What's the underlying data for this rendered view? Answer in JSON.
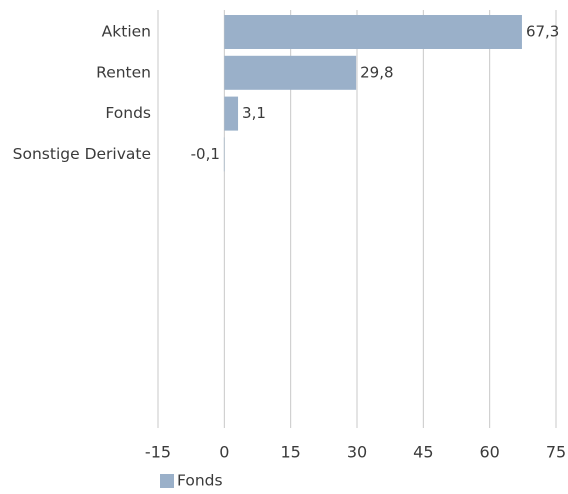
{
  "chart_data": {
    "type": "bar",
    "orientation": "horizontal",
    "categories": [
      "Aktien",
      "Renten",
      "Fonds",
      "Sonstige Derivate"
    ],
    "series": [
      {
        "name": "Fonds",
        "values": [
          67.3,
          29.8,
          3.1,
          -0.1
        ],
        "value_labels": [
          "67,3",
          "29,8",
          "3,1",
          "-0,1"
        ],
        "color": "#9ab0c9"
      }
    ],
    "xlim": [
      -15,
      75
    ],
    "xticks": [
      -15,
      0,
      15,
      30,
      45,
      60,
      75
    ],
    "xtick_labels": [
      "-15",
      "0",
      "15",
      "30",
      "45",
      "60",
      "75"
    ],
    "grid": "vertical",
    "legend_position": "bottom-left",
    "title": "",
    "xlabel": "",
    "ylabel": ""
  }
}
